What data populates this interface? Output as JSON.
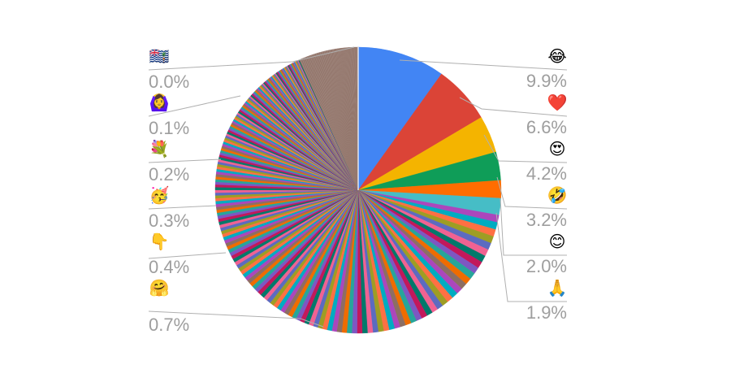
{
  "chart_data": {
    "type": "pie",
    "slices": [
      {
        "emoji": "😂",
        "percent": 9.9,
        "color": "#4285f4"
      },
      {
        "emoji": "❤️",
        "percent": 6.6,
        "color": "#db4437"
      },
      {
        "emoji": "😍",
        "percent": 4.2,
        "color": "#f4b400"
      },
      {
        "emoji": "🤣",
        "percent": 3.2,
        "color": "#0f9d58"
      },
      {
        "emoji": "😊",
        "percent": 2.0,
        "color": "#ff6d00"
      },
      {
        "emoji": "🙏",
        "percent": 1.9,
        "color": "#46bdc6"
      }
    ],
    "small_slice_labels": [
      {
        "emoji": "🤗",
        "percent": 0.7
      },
      {
        "emoji": "👇",
        "percent": 0.4
      },
      {
        "emoji": "🥳",
        "percent": 0.3
      },
      {
        "emoji": "💐",
        "percent": 0.2
      },
      {
        "emoji": "🙆‍♀️",
        "percent": 0.1
      },
      {
        "emoji": "🇮🇴",
        "percent": 0.0
      }
    ],
    "right_labels": [
      {
        "emoji": "😂",
        "text": "9.9%"
      },
      {
        "emoji": "❤️",
        "text": "6.6%"
      },
      {
        "emoji": "😍",
        "text": "4.2%"
      },
      {
        "emoji": "🤣",
        "text": "3.2%"
      },
      {
        "emoji": "😊",
        "text": "2.0%"
      },
      {
        "emoji": "🙏",
        "text": "1.9%"
      }
    ],
    "left_labels": [
      {
        "emoji": "🇮🇴",
        "text": "0.0%"
      },
      {
        "emoji": "🙆‍♀️",
        "text": "0.1%"
      },
      {
        "emoji": "💐",
        "text": "0.2%"
      },
      {
        "emoji": "🥳",
        "text": "0.3%"
      },
      {
        "emoji": "👇",
        "text": "0.4%"
      },
      {
        "emoji": "🤗",
        "text": "0.7%"
      }
    ],
    "tail_palette": [
      "#ab47bc",
      "#00acc1",
      "#ff7043",
      "#9e9d24",
      "#5c6bc0",
      "#f06292",
      "#00796b",
      "#c2185b",
      "#7e57c2",
      "#26a69a",
      "#ef6c00",
      "#8d6e63"
    ],
    "legend": "none"
  }
}
